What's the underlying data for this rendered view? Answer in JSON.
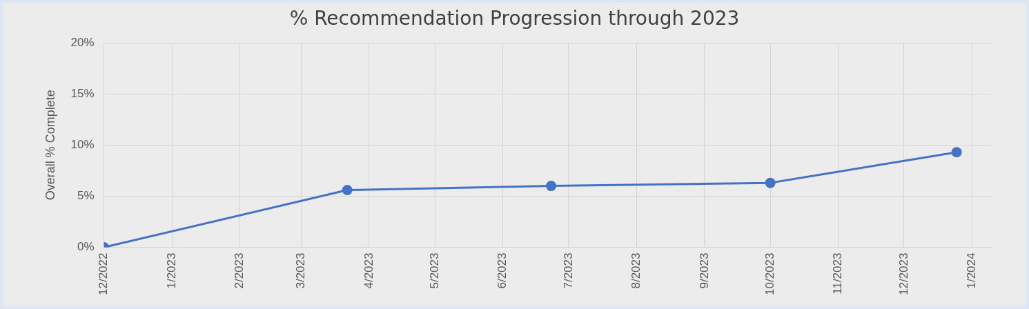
{
  "chart_data": {
    "type": "line",
    "title": "% Recommendation Progression through 2023",
    "ylabel": "Overall % Complete",
    "x": [
      "2022-12-01",
      "2023-03-22",
      "2023-06-23",
      "2023-10-01",
      "2023-12-25"
    ],
    "series": [
      {
        "color": "#4472c4",
        "values": [
          0,
          5.6,
          6.0,
          6.3,
          9.3
        ]
      }
    ],
    "xlim": [
      "2022-12-01",
      "2024-01-10"
    ],
    "xticks": [
      {
        "value": "2022-12-01",
        "label": "12/2022"
      },
      {
        "value": "2023-01-01",
        "label": "1/2023"
      },
      {
        "value": "2023-02-01",
        "label": "2/2023"
      },
      {
        "value": "2023-03-01",
        "label": "3/2023"
      },
      {
        "value": "2023-04-01",
        "label": "4/2023"
      },
      {
        "value": "2023-05-01",
        "label": "5/2023"
      },
      {
        "value": "2023-06-01",
        "label": "6/2023"
      },
      {
        "value": "2023-07-01",
        "label": "7/2023"
      },
      {
        "value": "2023-08-01",
        "label": "8/2023"
      },
      {
        "value": "2023-09-01",
        "label": "9/2023"
      },
      {
        "value": "2023-10-01",
        "label": "10/2023"
      },
      {
        "value": "2023-11-01",
        "label": "11/2023"
      },
      {
        "value": "2023-12-01",
        "label": "12/2023"
      },
      {
        "value": "2024-01-01",
        "label": "1/2024"
      }
    ],
    "ylim": [
      0,
      20
    ],
    "yticks": [
      {
        "value": 0,
        "label": "0%"
      },
      {
        "value": 5,
        "label": "5%"
      },
      {
        "value": 10,
        "label": "10%"
      },
      {
        "value": 15,
        "label": "15%"
      },
      {
        "value": 20,
        "label": "20%"
      }
    ],
    "grid": true,
    "marker": "circle",
    "line_style": "solid",
    "legend": false
  }
}
